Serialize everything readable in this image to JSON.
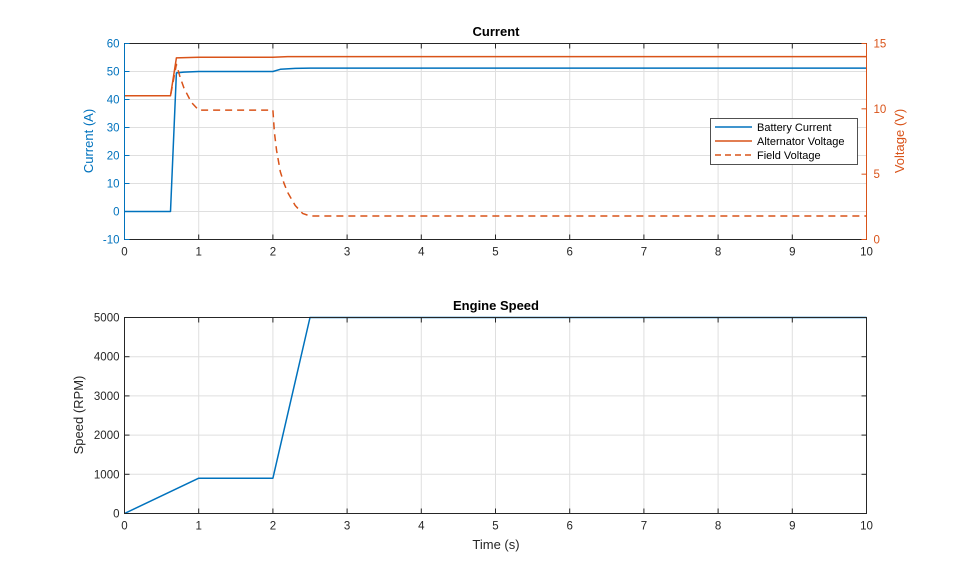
{
  "colors": {
    "blue": "#0072BD",
    "orange": "#D95319",
    "axis": "#262626",
    "grid": "#dfdfdf"
  },
  "chart_data": [
    {
      "type": "line",
      "title": "Current",
      "xlabel": "",
      "ylabel": "Current (A)",
      "y2label": "Voltage (V)",
      "xlim": [
        0,
        10
      ],
      "ylim": [
        -10,
        60
      ],
      "y2lim": [
        0,
        15
      ],
      "xticks": [
        "0",
        "1",
        "2",
        "3",
        "4",
        "5",
        "6",
        "7",
        "8",
        "9",
        "10"
      ],
      "yticks": [
        "-10",
        "0",
        "10",
        "20",
        "30",
        "40",
        "50",
        "60"
      ],
      "y2ticks": [
        "0",
        "5",
        "10",
        "15"
      ],
      "grid": true,
      "legend_position": "right",
      "series": [
        {
          "name": "Battery Current",
          "axis": "left",
          "style": "solid",
          "x": [
            0,
            0.62,
            0.7,
            0.8,
            1.0,
            1.5,
            2.0,
            2.1,
            2.3,
            2.5,
            3.0,
            5.0,
            8.0,
            10.0
          ],
          "y": [
            0,
            0,
            49.5,
            49.8,
            50.0,
            50.0,
            50.0,
            50.8,
            51.1,
            51.2,
            51.2,
            51.2,
            51.2,
            51.2
          ]
        },
        {
          "name": "Alternator Voltage",
          "axis": "right",
          "style": "solid",
          "x": [
            0,
            0.62,
            0.7,
            1.0,
            2.0,
            2.2,
            3.0,
            10.0
          ],
          "y": [
            11.0,
            11.0,
            13.9,
            13.95,
            13.95,
            14.0,
            14.0,
            14.0
          ]
        },
        {
          "name": "Field Voltage",
          "axis": "right",
          "style": "dashed",
          "x": [
            0,
            0.62,
            0.7,
            0.75,
            0.8,
            0.9,
            1.0,
            1.2,
            2.0,
            2.02,
            2.05,
            2.1,
            2.15,
            2.2,
            2.3,
            2.4,
            2.5,
            3.0,
            10.0
          ],
          "y": [
            11.0,
            11.0,
            13.4,
            12.4,
            11.6,
            10.5,
            9.9,
            9.9,
            9.9,
            8.2,
            6.8,
            5.2,
            4.3,
            3.6,
            2.6,
            2.0,
            1.8,
            1.8,
            1.8
          ]
        }
      ]
    },
    {
      "type": "line",
      "title": "Engine Speed",
      "xlabel": "Time (s)",
      "ylabel": "Speed (RPM)",
      "xlim": [
        0,
        10
      ],
      "ylim": [
        0,
        5000
      ],
      "xticks": [
        "0",
        "1",
        "2",
        "3",
        "4",
        "5",
        "6",
        "7",
        "8",
        "9",
        "10"
      ],
      "yticks": [
        "0",
        "1000",
        "2000",
        "3000",
        "4000",
        "5000"
      ],
      "grid": true,
      "series": [
        {
          "axis": "left",
          "style": "solid",
          "x": [
            0,
            1,
            2,
            2.5,
            10
          ],
          "y": [
            0,
            900,
            900,
            5000,
            5000
          ]
        }
      ]
    }
  ]
}
